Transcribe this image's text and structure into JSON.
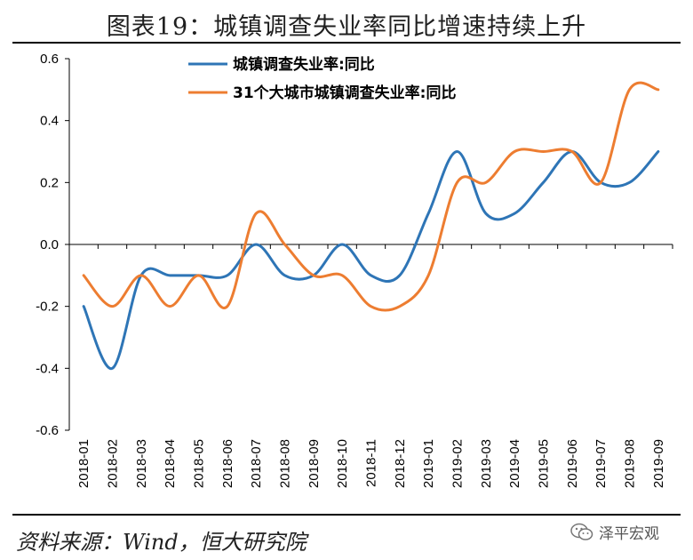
{
  "title": "图表19：城镇调查失业率同比增速持续上升",
  "source": "资料来源：Wind，恒大研究院",
  "watermark": "泽平宏观",
  "chart_data": {
    "type": "line",
    "categories": [
      "2018-01",
      "2018-02",
      "2018-03",
      "2018-04",
      "2018-05",
      "2018-06",
      "2018-07",
      "2018-08",
      "2018-09",
      "2018-10",
      "2018-11",
      "2018-12",
      "2019-01",
      "2019-02",
      "2019-03",
      "2019-04",
      "2019-05",
      "2019-06",
      "2019-07",
      "2019-08",
      "2019-09"
    ],
    "ylim": [
      -0.6,
      0.6
    ],
    "yticks": [
      "0.6",
      "0.4",
      "0.2",
      "0.0",
      "-0.2",
      "-0.4",
      "-0.6"
    ],
    "ytick_values": [
      0.6,
      0.4,
      0.2,
      0.0,
      -0.2,
      -0.4,
      -0.6
    ],
    "legend_position": "top",
    "series": [
      {
        "name": "城镇调查失业率:同比",
        "color": "#2e75b6",
        "values": [
          -0.2,
          -0.4,
          -0.1,
          -0.1,
          -0.1,
          -0.1,
          0.0,
          -0.1,
          -0.1,
          0.0,
          -0.1,
          -0.1,
          0.1,
          0.3,
          0.1,
          0.1,
          0.2,
          0.3,
          0.2,
          0.2,
          0.3
        ]
      },
      {
        "name": "31个大城市城镇调查失业率:同比",
        "color": "#ed7d31",
        "values": [
          -0.1,
          -0.2,
          -0.1,
          -0.2,
          -0.1,
          -0.2,
          0.1,
          0.0,
          -0.1,
          -0.1,
          -0.2,
          -0.2,
          -0.1,
          0.2,
          0.2,
          0.3,
          0.3,
          0.3,
          0.2,
          0.5,
          0.5
        ]
      }
    ]
  }
}
